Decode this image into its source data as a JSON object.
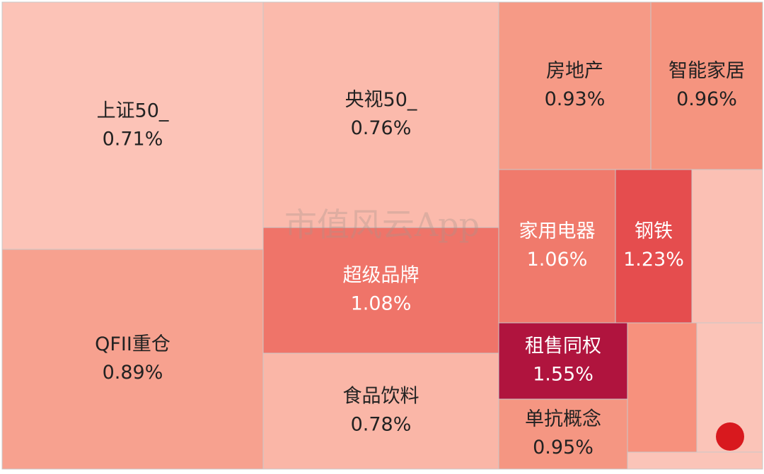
{
  "chart_data": {
    "type": "treemap",
    "categories": [
      "上证50_",
      "QFII重仓",
      "央视50_",
      "超级品牌",
      "食品饮料",
      "房地产",
      "智能家居",
      "家用电器",
      "钢铁",
      "租售同权",
      "单抗概念"
    ],
    "values": [
      0.71,
      0.89,
      0.76,
      1.08,
      0.78,
      0.93,
      0.96,
      1.06,
      1.23,
      1.55,
      0.95
    ],
    "value_labels": [
      "0.71%",
      "0.89%",
      "0.76%",
      "1.08%",
      "0.78%",
      "0.93%",
      "0.96%",
      "1.06%",
      "1.23%",
      "1.55%",
      "0.95%"
    ],
    "watermark": "市值风云App"
  }
}
